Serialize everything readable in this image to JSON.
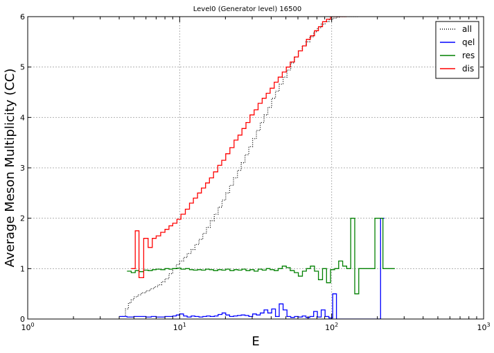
{
  "chart_data": {
    "type": "line",
    "title": "Level0 (Generator level) 16500",
    "xlabel": "E",
    "ylabel": "Average Meson Multiplicity (CC)",
    "xscale": "log",
    "xlim": [
      1,
      1000
    ],
    "ylim": [
      0,
      6
    ],
    "xticks": [
      {
        "value": 1,
        "base": "10",
        "exp": "0"
      },
      {
        "value": 10,
        "base": "10",
        "exp": "1"
      },
      {
        "value": 100,
        "base": "10",
        "exp": "2"
      },
      {
        "value": 1000,
        "base": "10",
        "exp": "3"
      }
    ],
    "yticks": [
      "0",
      "1",
      "2",
      "3",
      "4",
      "5",
      "6"
    ],
    "grid": true,
    "legend_position": "top-right",
    "series": [
      {
        "name": "all",
        "color": "#000000",
        "dash": "dotted",
        "x": [
          4.2,
          4.4,
          4.6,
          4.8,
          5.0,
          5.3,
          5.6,
          6.0,
          6.4,
          6.8,
          7.2,
          7.6,
          8.0,
          8.5,
          9.0,
          9.5,
          10.0,
          10.6,
          11.2,
          11.9,
          12.6,
          13.4,
          14.2,
          15.0,
          15.9,
          16.9,
          17.9,
          19.0,
          20.1,
          21.3,
          22.6,
          24.0,
          25.4,
          26.9,
          28.5,
          30.2,
          32.0,
          33.9,
          35.9,
          38.0,
          40.3,
          42.7,
          45.2,
          47.9,
          50.8,
          53.8,
          57.0,
          60.4,
          64.0,
          67.8,
          71.8,
          76.1,
          80.6,
          85.4,
          90.5,
          95.9,
          101.6,
          107.6,
          114.0,
          120.8,
          128.0,
          135.6,
          143.0
        ],
        "y": [
          0.05,
          0.2,
          0.32,
          0.38,
          0.44,
          0.48,
          0.52,
          0.56,
          0.6,
          0.64,
          0.68,
          0.74,
          0.8,
          0.9,
          1.0,
          1.08,
          1.15,
          1.22,
          1.3,
          1.38,
          1.48,
          1.58,
          1.7,
          1.82,
          1.95,
          2.08,
          2.22,
          2.36,
          2.5,
          2.65,
          2.8,
          2.95,
          3.1,
          3.26,
          3.42,
          3.58,
          3.74,
          3.9,
          4.05,
          4.2,
          4.38,
          4.52,
          4.66,
          4.8,
          4.94,
          5.08,
          5.2,
          5.32,
          5.42,
          5.5,
          5.6,
          5.7,
          5.78,
          5.85,
          5.9,
          5.94,
          5.97,
          5.99,
          6.0,
          6.0,
          6.0,
          6.0,
          6.0
        ]
      },
      {
        "name": "qel",
        "color": "#0000ff",
        "dash": "solid",
        "x": [
          4.0,
          4.5,
          5.0,
          5.5,
          6.0,
          6.5,
          7.0,
          7.5,
          8.0,
          8.5,
          9.0,
          9.5,
          10.0,
          10.6,
          11.2,
          11.9,
          12.6,
          13.4,
          14.2,
          15.0,
          15.9,
          16.9,
          17.9,
          19.0,
          20.1,
          21.3,
          22.6,
          24.0,
          25.4,
          26.9,
          28.5,
          30.2,
          32.0,
          33.9,
          35.9,
          38.0,
          40.3,
          42.7,
          45.2,
          47.9,
          50.8,
          53.8,
          57.0,
          60.4,
          64.0,
          67.8,
          71.8,
          76.1,
          80.6,
          85.4,
          90.5,
          95.9,
          101.6,
          107.6,
          114.0,
          210.0
        ],
        "y": [
          0.05,
          0.04,
          0.05,
          0.05,
          0.04,
          0.05,
          0.04,
          0.04,
          0.05,
          0.05,
          0.06,
          0.08,
          0.1,
          0.06,
          0.04,
          0.06,
          0.05,
          0.04,
          0.05,
          0.06,
          0.05,
          0.06,
          0.09,
          0.12,
          0.08,
          0.05,
          0.06,
          0.07,
          0.08,
          0.07,
          0.05,
          0.1,
          0.08,
          0.12,
          0.18,
          0.12,
          0.2,
          0.05,
          0.3,
          0.18,
          0.05,
          0.03,
          0.05,
          0.04,
          0.06,
          0.03,
          0.05,
          0.15,
          0.04,
          0.18,
          0.05,
          0.02,
          0.5,
          0.0,
          0.0,
          2.0
        ]
      },
      {
        "name": "res",
        "color": "#008000",
        "dash": "solid",
        "x": [
          4.5,
          4.8,
          5.1,
          5.4,
          5.8,
          6.2,
          6.6,
          7.0,
          7.5,
          8.0,
          8.5,
          9.0,
          9.6,
          10.2,
          10.9,
          11.6,
          12.3,
          13.1,
          13.9,
          14.8,
          15.7,
          16.7,
          17.8,
          18.9,
          20.1,
          21.4,
          22.8,
          24.2,
          25.7,
          27.3,
          29.0,
          30.9,
          32.8,
          34.9,
          37.1,
          39.4,
          41.9,
          44.5,
          47.3,
          50.3,
          53.4,
          56.8,
          60.4,
          64.2,
          68.2,
          72.5,
          77.1,
          81.9,
          87.1,
          92.6,
          98.4,
          104.6,
          111.2,
          118.2,
          125.6,
          133.5,
          141.9,
          150.8,
          160.3,
          170.4,
          181.1,
          192.5,
          204.6,
          217.5,
          231.2,
          245.7
        ],
        "y": [
          0.95,
          0.92,
          0.96,
          0.94,
          0.97,
          0.96,
          0.98,
          0.99,
          0.98,
          1.0,
          0.99,
          1.0,
          1.01,
          0.99,
          1.0,
          0.98,
          0.97,
          0.98,
          0.97,
          0.99,
          0.98,
          0.96,
          0.98,
          0.97,
          0.99,
          0.96,
          0.98,
          0.97,
          0.99,
          0.96,
          0.98,
          0.95,
          0.99,
          0.97,
          1.0,
          0.98,
          0.96,
          1.0,
          1.05,
          1.02,
          0.96,
          0.92,
          0.85,
          0.95,
          1.0,
          1.05,
          0.95,
          0.78,
          1.0,
          0.72,
          0.98,
          1.0,
          1.15,
          1.05,
          1.0,
          2.0,
          0.5,
          1.0,
          1.0,
          1.0,
          1.0,
          2.0,
          2.0,
          1.0,
          1.0,
          1.0
        ]
      },
      {
        "name": "dis",
        "color": "#ff0000",
        "dash": "solid",
        "x": [
          4.8,
          5.1,
          5.4,
          5.8,
          6.2,
          6.6,
          7.0,
          7.5,
          8.0,
          8.5,
          9.0,
          9.6,
          10.2,
          10.9,
          11.6,
          12.3,
          13.1,
          13.9,
          14.8,
          15.7,
          16.7,
          17.8,
          18.9,
          20.1,
          21.4,
          22.8,
          24.2,
          25.7,
          27.3,
          29.0,
          30.9,
          32.8,
          34.9,
          37.1,
          39.4,
          41.9,
          44.5,
          47.3,
          50.3,
          53.4,
          56.8,
          60.4,
          64.2,
          68.2,
          72.5,
          77.1,
          81.9,
          87.1,
          92.6,
          98.4,
          104.6,
          111.2,
          118.2
        ],
        "y": [
          1.0,
          1.75,
          0.82,
          1.6,
          1.42,
          1.6,
          1.65,
          1.72,
          1.78,
          1.85,
          1.9,
          1.98,
          2.08,
          2.18,
          2.3,
          2.4,
          2.5,
          2.6,
          2.7,
          2.8,
          2.92,
          3.05,
          3.15,
          3.28,
          3.4,
          3.55,
          3.65,
          3.78,
          3.9,
          4.05,
          4.15,
          4.28,
          4.38,
          4.48,
          4.58,
          4.7,
          4.8,
          4.9,
          5.0,
          5.1,
          5.2,
          5.32,
          5.42,
          5.55,
          5.62,
          5.72,
          5.8,
          5.9,
          5.95,
          6.0,
          6.0,
          6.0,
          6.0
        ]
      }
    ]
  }
}
